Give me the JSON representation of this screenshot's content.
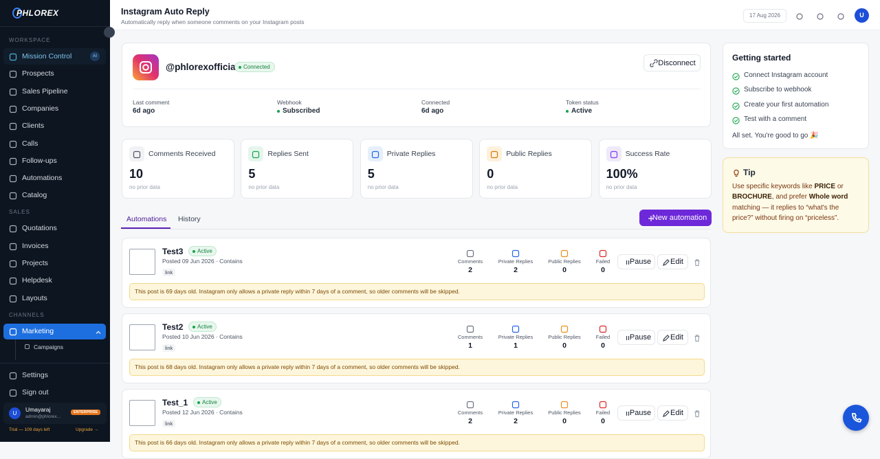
{
  "sidebar": {
    "logo": "PHLOREX",
    "sections": [
      {
        "label": "WORKSPACE",
        "items": [
          {
            "label": "Mission Control",
            "badge": "AI"
          },
          {
            "label": "Prospects"
          },
          {
            "label": "Sales Pipeline"
          },
          {
            "label": "Companies"
          },
          {
            "label": "Clients"
          },
          {
            "label": "Calls"
          },
          {
            "label": "Follow-ups"
          },
          {
            "label": "Automations"
          },
          {
            "label": "Catalog"
          }
        ]
      },
      {
        "label": "SALES",
        "items": [
          {
            "label": "Quotations"
          },
          {
            "label": "Invoices"
          },
          {
            "label": "Projects"
          },
          {
            "label": "Helpdesk"
          },
          {
            "label": "Layouts"
          }
        ]
      },
      {
        "label": "CHANNELS",
        "items": [
          {
            "label": "Marketing",
            "children": [
              "Campaigns"
            ]
          }
        ]
      }
    ],
    "bottom": [
      "Settings",
      "Sign out"
    ],
    "user": {
      "initial": "U",
      "name": "Umayaraj",
      "email": "admin@phlorex...",
      "plan": "ENTERPRISE",
      "trial": "Trial — 109 days left",
      "upgrade": "Upgrade →"
    }
  },
  "header": {
    "title": "Instagram Auto Reply",
    "subtitle": "Automatically reply when someone comments on your Instagram posts",
    "date": "17 Aug 2026",
    "avatar": "U"
  },
  "account": {
    "handle": "@phlorexofficial",
    "status": "Connected",
    "disconnect": "Disconnect",
    "info": [
      {
        "label": "Last comment",
        "value": "6d ago"
      },
      {
        "label": "Webhook",
        "value": "Subscribed"
      },
      {
        "label": "Connected",
        "value": "6d ago"
      },
      {
        "label": "Token status",
        "value": "Active"
      }
    ]
  },
  "stats": [
    {
      "label": "Comments Received",
      "value": 10,
      "note": "no prior data"
    },
    {
      "label": "Replies Sent",
      "value": 5,
      "note": "no prior data"
    },
    {
      "label": "Private Replies",
      "value": 5,
      "note": "no prior data"
    },
    {
      "label": "Public Replies",
      "value": 0,
      "note": "no prior data"
    },
    {
      "label": "Success Rate",
      "value": "100%",
      "note": "no prior data"
    }
  ],
  "tabs": [
    "Automations",
    "History"
  ],
  "new_button": "New automation",
  "automations": [
    {
      "name": "Test3",
      "status": "Active",
      "posted": "Posted 09 Jun 2026 · Contains",
      "tag": "link",
      "metrics": [
        {
          "label": "Comments",
          "value": 2
        },
        {
          "label": "Private Replies",
          "value": 2
        },
        {
          "label": "Public Replies",
          "value": 0
        },
        {
          "label": "Failed",
          "value": 0
        }
      ],
      "pause": "Pause",
      "edit": "Edit",
      "warning": "This post is 69 days old. Instagram only allows a private reply within 7 days of a comment, so older comments will be skipped."
    },
    {
      "name": "Test2",
      "status": "Active",
      "posted": "Posted 10 Jun 2026 · Contains",
      "tag": "link",
      "metrics": [
        {
          "label": "Comments",
          "value": 1
        },
        {
          "label": "Private Replies",
          "value": 1
        },
        {
          "label": "Public Replies",
          "value": 0
        },
        {
          "label": "Failed",
          "value": 0
        }
      ],
      "pause": "Pause",
      "edit": "Edit",
      "warning": "This post is 68 days old. Instagram only allows a private reply within 7 days of a comment, so older comments will be skipped."
    },
    {
      "name": "Test_1",
      "status": "Active",
      "posted": "Posted 12 Jun 2026 · Contains",
      "tag": "link",
      "metrics": [
        {
          "label": "Comments",
          "value": 2
        },
        {
          "label": "Private Replies",
          "value": 2
        },
        {
          "label": "Public Replies",
          "value": 0
        },
        {
          "label": "Failed",
          "value": 0
        }
      ],
      "pause": "Pause",
      "edit": "Edit",
      "warning": "This post is 66 days old. Instagram only allows a private reply within 7 days of a comment, so older comments will be skipped."
    }
  ],
  "getting_started": {
    "title": "Getting started",
    "items": [
      "Connect Instagram account",
      "Subscribe to webhook",
      "Create your first automation",
      "Test with a comment"
    ],
    "footer": "All set. You're good to go 🎉"
  },
  "tip": {
    "title": "Tip",
    "body": [
      "Use specific keywords like ",
      "PRICE",
      " or ",
      "BROCHURE",
      ", and prefer ",
      "Whole word",
      " matching — it replies to “what's the price?” without firing on “priceless”."
    ]
  }
}
